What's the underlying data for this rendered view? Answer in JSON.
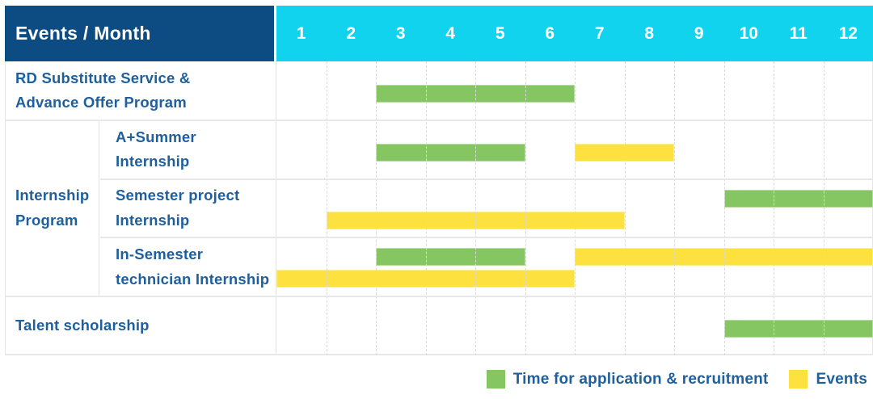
{
  "colors": {
    "green": "#85c663",
    "yellow": "#fde13e",
    "navy": "#0d4c83",
    "cyan": "#11d3ee",
    "label_blue": "#1e5f9e",
    "header_text": "#ffffff",
    "grid_solid": "#e8e8e8",
    "grid_dashed": "#d9d9d9",
    "background": "#ffffff"
  },
  "chart_data": {
    "type": "gantt",
    "title": "Events / Month",
    "x_categories": [
      "1",
      "2",
      "3",
      "4",
      "5",
      "6",
      "7",
      "8",
      "9",
      "10",
      "11",
      "12"
    ],
    "x_range": [
      1,
      12
    ],
    "grid": true,
    "legend_position": "bottom-right",
    "group_label": "Internship\nProgram",
    "legend": [
      {
        "key": "green",
        "color": "#85c663",
        "label": "Time for application & recruitment"
      },
      {
        "key": "yellow",
        "color": "#fde13e",
        "label": "Events"
      }
    ],
    "rows": [
      {
        "label": "RD Substitute Service &\nAdvance Offer Program",
        "group": null,
        "lines": 1,
        "bars": [
          {
            "type": "green",
            "start_month": 3,
            "end_month": 6,
            "line": 0
          }
        ]
      },
      {
        "label": "A+Summer\nInternship",
        "group": "Internship Program",
        "lines": 1,
        "bars": [
          {
            "type": "green",
            "start_month": 3,
            "end_month": 5,
            "line": 0
          },
          {
            "type": "yellow",
            "start_month": 7,
            "end_month": 8,
            "line": 0
          }
        ]
      },
      {
        "label": "Semester project\nInternship",
        "group": "Internship Program",
        "lines": 2,
        "bars": [
          {
            "type": "green",
            "start_month": 10,
            "end_month": 12,
            "line": 0
          },
          {
            "type": "yellow",
            "start_month": 2,
            "end_month": 7,
            "line": 1
          }
        ]
      },
      {
        "label": "In-Semester\ntechnician Internship",
        "group": "Internship Program",
        "lines": 2,
        "bars": [
          {
            "type": "green",
            "start_month": 3,
            "end_month": 5,
            "line": 0
          },
          {
            "type": "yellow",
            "start_month": 7,
            "end_month": 12,
            "line": 0
          },
          {
            "type": "yellow",
            "start_month": 1,
            "end_month": 6,
            "line": 1
          }
        ]
      },
      {
        "label": "Talent scholarship",
        "group": null,
        "lines": 1,
        "bars": [
          {
            "type": "green",
            "start_month": 10,
            "end_month": 12,
            "line": 0
          }
        ]
      }
    ]
  }
}
